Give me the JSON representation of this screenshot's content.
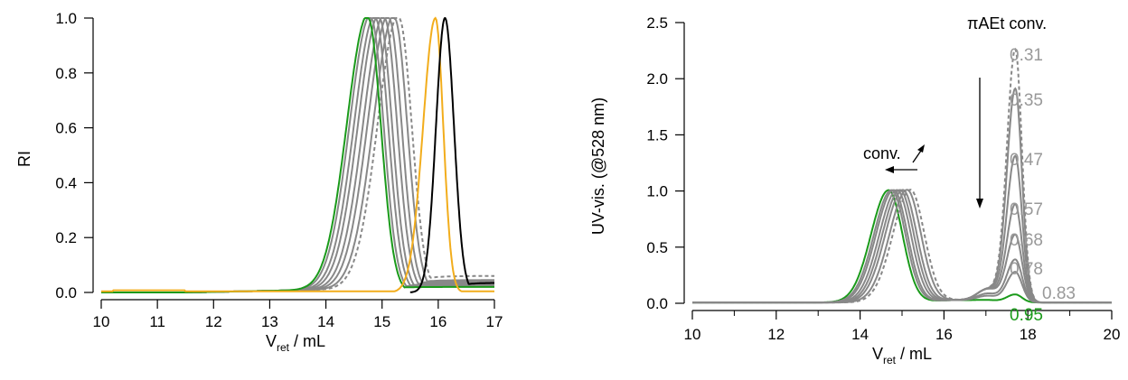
{
  "chart_data": [
    {
      "type": "line",
      "ylabel": "RI",
      "xlabel_main": "V",
      "xlabel_sub": "ret",
      "xlabel_rest": " / mL",
      "xlim": [
        10,
        17
      ],
      "ylim": [
        0,
        1.0
      ],
      "xticks": [
        "10",
        "11",
        "12",
        "13",
        "14",
        "15",
        "16",
        "17"
      ],
      "yticks": [
        "0.0",
        "0.2",
        "0.4",
        "0.6",
        "0.8",
        "1.0"
      ],
      "grid": false,
      "colors": {
        "gray": "#888888",
        "green": "#1a9a1a",
        "orange": "#f2ad1c",
        "black": "#000000"
      },
      "peaks": {
        "gray_dashed": {
          "center": 15.3,
          "tail_level": 0.06,
          "tail_end": 0.055
        },
        "gray": [
          {
            "center": 15.22,
            "tail_level": 0.045
          },
          {
            "center": 15.12,
            "tail_level": 0.04
          },
          {
            "center": 15.04,
            "tail_level": 0.035
          },
          {
            "center": 14.95,
            "tail_level": 0.03
          },
          {
            "center": 14.88,
            "tail_level": 0.028
          },
          {
            "center": 14.8,
            "tail_level": 0.025
          }
        ],
        "green": {
          "center": 14.75,
          "tail_level": 0.02
        },
        "orange": {
          "center": 15.95
        },
        "black": {
          "center": 16.12
        }
      }
    },
    {
      "type": "line",
      "ylabel": "UV-vis. (@528 nm)",
      "xlabel_main": "V",
      "xlabel_sub": "ret",
      "xlabel_rest": " / mL",
      "xlim": [
        10,
        20
      ],
      "ylim": [
        0,
        2.5
      ],
      "xticks": [
        "10",
        "12",
        "14",
        "16",
        "18",
        "20"
      ],
      "yticks": [
        "0.0",
        "0.5",
        "1.0",
        "1.5",
        "2.0",
        "2.5"
      ],
      "grid": false,
      "legend_title": "πAEt conv.",
      "conv_label": "conv.",
      "colors": {
        "gray": "#888888",
        "green": "#1a9a1a"
      },
      "series": [
        {
          "name": "0.31",
          "polymer_center": 15.2,
          "monomer_peak": 2.25,
          "dashed": true
        },
        {
          "name": "0.35",
          "polymer_center": 15.12,
          "monomer_peak": 1.9
        },
        {
          "name": "0.47",
          "polymer_center": 15.02,
          "monomer_peak": 1.3
        },
        {
          "name": "0.57",
          "polymer_center": 14.95,
          "monomer_peak": 0.87
        },
        {
          "name": "0.68",
          "polymer_center": 14.88,
          "monomer_peak": 0.6
        },
        {
          "name": "0.78",
          "polymer_center": 14.8,
          "monomer_peak": 0.38
        },
        {
          "name": "0.83",
          "polymer_center": 14.75,
          "monomer_peak": 0.27
        },
        {
          "name": "0.95",
          "polymer_center": 14.68,
          "monomer_peak": 0.07,
          "green": true
        }
      ],
      "monomer_center": 17.7
    }
  ]
}
